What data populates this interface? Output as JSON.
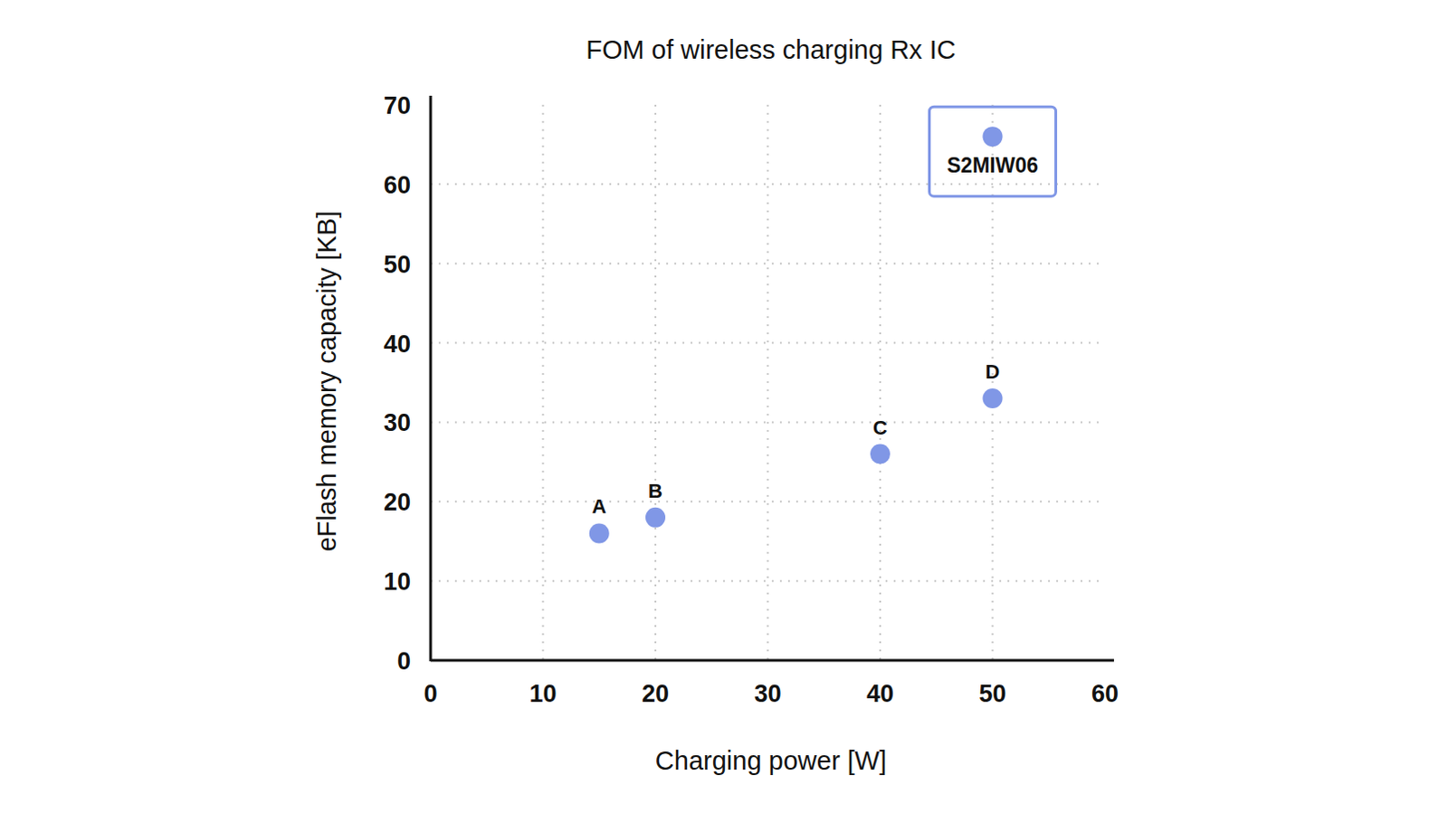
{
  "chart_data": {
    "type": "scatter",
    "title": "FOM of wireless charging Rx IC",
    "x_label": "Charging power [W]",
    "y_label": "eFlash memory capacity [KB]",
    "x": [
      15,
      20,
      40,
      50,
      50
    ],
    "values": [
      16,
      18,
      26,
      33,
      66
    ],
    "point_labels": [
      "A",
      "B",
      "C",
      "D",
      "S2MIW06"
    ],
    "color": "#8097e6",
    "marker": "circle",
    "xlim": [
      0,
      60
    ],
    "ylim": [
      0,
      70
    ],
    "xticks": [
      0,
      10,
      20,
      30,
      40,
      50,
      60
    ],
    "yticks": [
      0,
      10,
      20,
      30,
      40,
      50,
      60,
      70
    ],
    "grid": true
  }
}
